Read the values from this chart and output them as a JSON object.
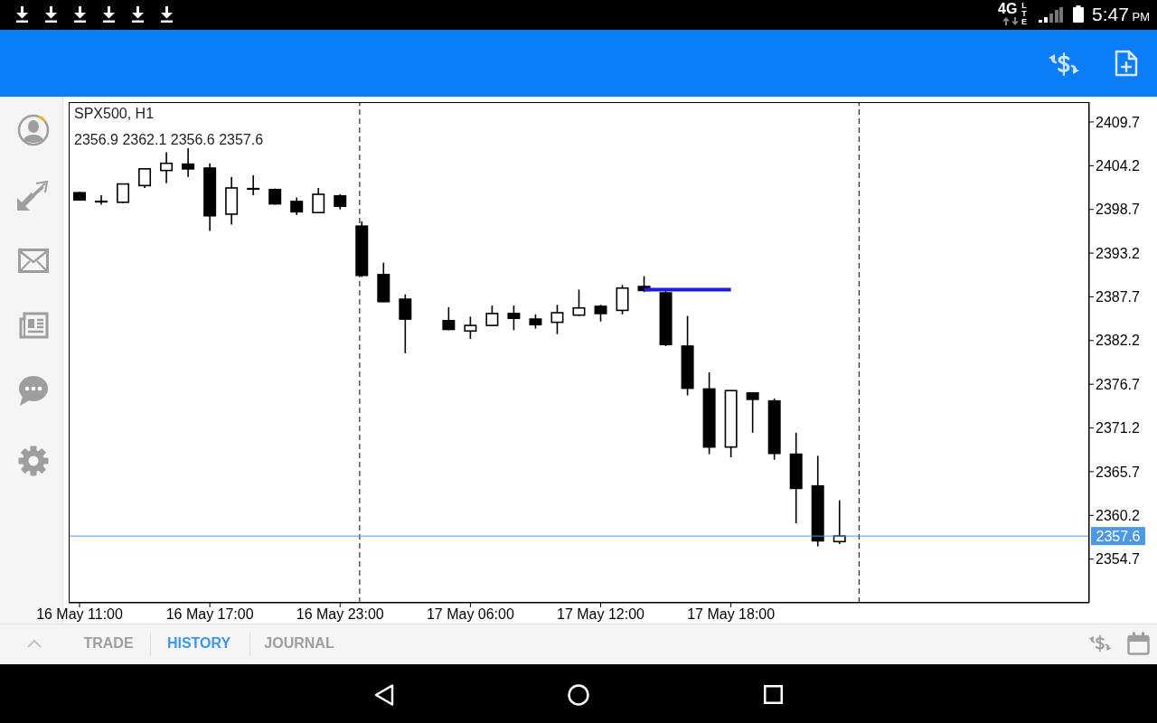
{
  "chart_data": {
    "type": "candlestick",
    "title": "SPX500, H1",
    "categories": [
      "16 May 11:00",
      null,
      null,
      null,
      null,
      null,
      "16 May 17:00",
      null,
      null,
      null,
      null,
      null,
      "16 May 23:00",
      null,
      null,
      null,
      null,
      null,
      "17 May 06:00",
      null,
      null,
      null,
      null,
      null,
      "17 May 12:00",
      null,
      null,
      null,
      null,
      null,
      "17 May 18:00",
      null,
      null,
      null,
      null,
      null,
      null,
      null,
      null,
      null,
      null,
      null,
      null,
      null,
      null,
      null,
      null
    ],
    "ohlc": [
      [
        2400.8,
        2400.9,
        2399.8,
        2399.9
      ],
      [
        2399.7,
        2400.5,
        2399.3,
        2399.7
      ],
      [
        2399.6,
        2401.9,
        2399.5,
        2401.9
      ],
      [
        2401.7,
        2403.9,
        2401.4,
        2403.8
      ],
      [
        2403.6,
        2405.9,
        2402.0,
        2404.5
      ],
      [
        2404.4,
        2406.4,
        2402.8,
        2403.8
      ],
      [
        2403.9,
        2404.5,
        2396.0,
        2397.9
      ],
      [
        2398.1,
        2402.8,
        2396.8,
        2401.4
      ],
      [
        2401.3,
        2403.0,
        2400.5,
        2401.3
      ],
      [
        2401.2,
        2401.3,
        2399.3,
        2399.4
      ],
      [
        2399.7,
        2400.2,
        2398.0,
        2398.4
      ],
      [
        2398.3,
        2401.4,
        2398.3,
        2400.6
      ],
      [
        2400.4,
        2400.6,
        2398.7,
        2399.1
      ],
      [
        2396.6,
        2397.2,
        2390.2,
        2390.4
      ],
      [
        2390.5,
        2392.0,
        2387.0,
        2387.1
      ],
      [
        2387.4,
        2388.0,
        2380.6,
        2384.9
      ],
      null,
      [
        2384.7,
        2386.4,
        2383.5,
        2383.6
      ],
      [
        2383.4,
        2385.2,
        2382.4,
        2384.1
      ],
      [
        2384.1,
        2386.6,
        2384.1,
        2385.6
      ],
      [
        2385.6,
        2386.6,
        2383.5,
        2385.0
      ],
      [
        2384.9,
        2385.5,
        2383.7,
        2384.2
      ],
      [
        2384.5,
        2386.7,
        2383.0,
        2385.7
      ],
      [
        2385.4,
        2388.6,
        2385.3,
        2386.3
      ],
      [
        2386.5,
        2386.7,
        2384.6,
        2385.6
      ],
      [
        2386.0,
        2389.2,
        2385.5,
        2388.8
      ],
      [
        2389.0,
        2390.3,
        2388.3,
        2388.5
      ],
      [
        2388.2,
        2388.4,
        2381.5,
        2381.7
      ],
      [
        2381.5,
        2385.3,
        2375.3,
        2376.2
      ],
      [
        2376.1,
        2378.2,
        2367.9,
        2368.8
      ],
      [
        2368.8,
        2375.9,
        2367.5,
        2375.9
      ],
      [
        2375.6,
        2375.6,
        2370.6,
        2374.8
      ],
      [
        2374.6,
        2374.9,
        2367.2,
        2368.0
      ],
      [
        2367.9,
        2370.6,
        2359.2,
        2363.6
      ],
      [
        2363.9,
        2367.7,
        2356.3,
        2357.0
      ],
      [
        2356.9,
        2362.1,
        2356.6,
        2357.6
      ],
      null,
      null,
      null,
      null,
      null,
      null,
      null,
      null,
      null,
      null,
      null
    ],
    "color": "#000000",
    "series": [
      {
        "type": "line",
        "color": "#1c1ce0",
        "values": [
          null,
          null,
          null,
          null,
          null,
          null,
          null,
          null,
          null,
          null,
          null,
          null,
          null,
          null,
          null,
          null,
          null,
          null,
          null,
          null,
          null,
          null,
          null,
          null,
          null,
          null,
          2388.6,
          2388.6,
          2388.6,
          2388.6,
          2388.6,
          null,
          null,
          null,
          null,
          null,
          null,
          null,
          null,
          null,
          null,
          null,
          null,
          null,
          null,
          null,
          null
        ]
      }
    ],
    "ylim": [
      2349.2,
      2412.2
    ],
    "yticks": [
      2354.7,
      2360.2,
      2365.7,
      2371.2,
      2376.7,
      2382.2,
      2387.7,
      2393.2,
      2398.7,
      2404.2,
      2409.7
    ],
    "ref_lines": [
      {
        "axis": "y",
        "value": 2357.6,
        "label": "2357.6",
        "color": "#4a98e6"
      }
    ],
    "annotations": [
      "2356.9 2362.1 2356.6 2357.6",
      "4G",
      "LTE",
      "5:47 PM",
      "TRADE",
      "HISTORY",
      "JOURNAL"
    ]
  }
}
